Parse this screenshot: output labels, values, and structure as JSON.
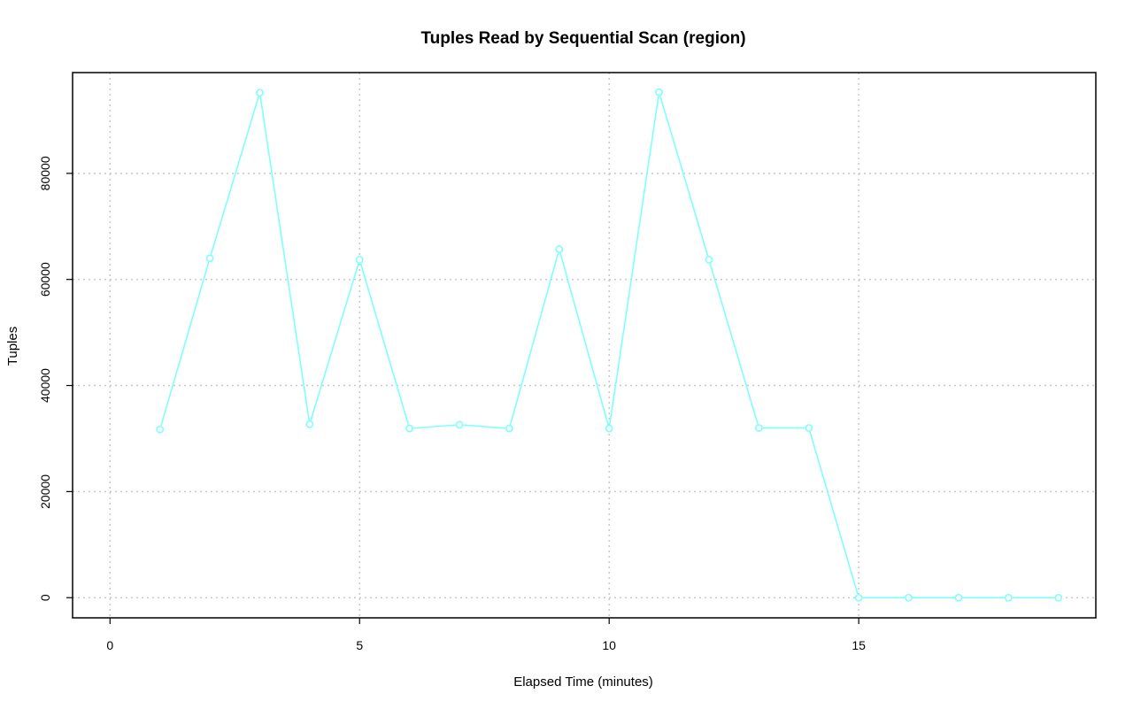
{
  "chart_data": {
    "type": "line",
    "title": "Tuples Read by Sequential Scan (region)",
    "xlabel": "Elapsed Time (minutes)",
    "ylabel": "Tuples",
    "xlim": [
      -0.75,
      19.75
    ],
    "ylim": [
      -3800,
      99000
    ],
    "x_ticks": [
      0,
      5,
      10,
      15
    ],
    "y_ticks": [
      0,
      20000,
      40000,
      60000,
      80000
    ],
    "grid": true,
    "series": [
      {
        "color": "#7fffff",
        "x": [
          1,
          2,
          3,
          4,
          5,
          6,
          7,
          8,
          9,
          10,
          11,
          12,
          13,
          14,
          15,
          16,
          17,
          18,
          19
        ],
        "values": [
          31700,
          64000,
          95200,
          32700,
          63700,
          31900,
          32600,
          31900,
          65700,
          31900,
          95300,
          63700,
          32000,
          32000,
          0,
          0,
          0,
          0,
          0
        ]
      }
    ]
  }
}
